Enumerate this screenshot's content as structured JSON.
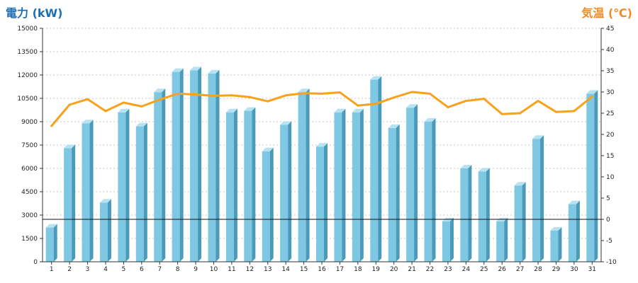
{
  "chart_data": {
    "type": "bar",
    "y_left_label": "電力 (kW)",
    "y_right_label": "気温 (℃)",
    "colors": {
      "left_label": "#1f6fb2",
      "right_label": "#f08a24",
      "bar_front": "#7ec8e3",
      "bar_side": "#4a9bb9",
      "bar_top": "#b7e2f2",
      "line": "#f7a21b",
      "grid": "#b5b5b5",
      "axis": "#333333",
      "ref_line": "#111111"
    },
    "left_axis": {
      "min": 0,
      "max": 15000,
      "ticks": [
        0,
        1500,
        3000,
        4500,
        6000,
        7500,
        9000,
        10500,
        12000,
        13500,
        15000
      ]
    },
    "right_axis": {
      "min": -10,
      "max": 45,
      "ticks": [
        -10,
        -5,
        0,
        5,
        10,
        15,
        20,
        25,
        30,
        35,
        40,
        45
      ]
    },
    "reference_line": {
      "axis": "right",
      "value": 0
    },
    "categories": [
      "1",
      "2",
      "3",
      "4",
      "5",
      "6",
      "7",
      "8",
      "9",
      "10",
      "11",
      "12",
      "13",
      "14",
      "15",
      "16",
      "17",
      "18",
      "19",
      "20",
      "21",
      "22",
      "23",
      "24",
      "25",
      "26",
      "27",
      "28",
      "29",
      "30",
      "31"
    ],
    "series": [
      {
        "kind": "bar",
        "axis": "left",
        "values": [
          2200,
          7300,
          8900,
          3800,
          9600,
          8700,
          10900,
          12200,
          12300,
          12100,
          9600,
          9700,
          7100,
          8800,
          10900,
          7400,
          9600,
          9600,
          11700,
          8600,
          9900,
          9000,
          2600,
          6000,
          5800,
          2600,
          4900,
          7900,
          2000,
          3700,
          10800
        ]
      },
      {
        "kind": "line",
        "axis": "right",
        "values": [
          22,
          27,
          28.3,
          25.5,
          27.5,
          26.6,
          28.2,
          29.6,
          29.4,
          29.1,
          29.2,
          28.8,
          27.8,
          29.2,
          29.7,
          29.6,
          29.9,
          26.8,
          27.2,
          28.7,
          30,
          29.6,
          26.4,
          27.9,
          28.4,
          24.8,
          25,
          27.9,
          25.3,
          25.5,
          28.9
        ]
      }
    ]
  }
}
